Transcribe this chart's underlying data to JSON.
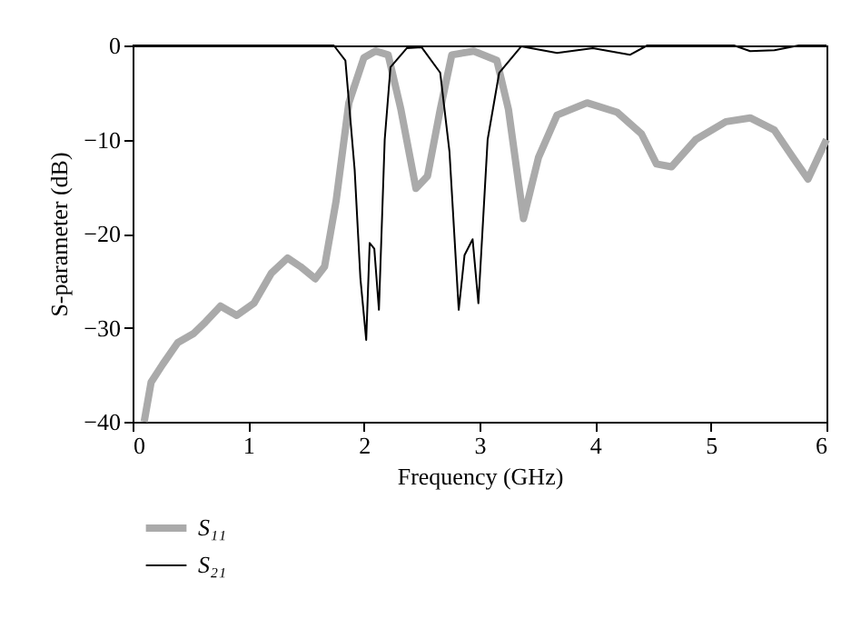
{
  "chart_data": {
    "type": "line",
    "xlabel": "Frequency (GHz)",
    "ylabel": "S-parameter (dB)",
    "xlim": [
      0,
      6
    ],
    "ylim": [
      -40,
      0
    ],
    "xticks": [
      0,
      1,
      2,
      3,
      4,
      5,
      6
    ],
    "yticks": [
      -40,
      -30,
      -20,
      -10,
      0
    ],
    "grid": false,
    "legend": "bottom left",
    "marker": "none",
    "line_style": "solid",
    "series": [
      {
        "name": "S₁₁",
        "color": "#aaaaaa",
        "x": [
          0.1,
          0.16,
          0.26,
          0.39,
          0.53,
          0.63,
          0.76,
          0.9,
          1.05,
          1.2,
          1.34,
          1.45,
          1.58,
          1.66,
          1.76,
          1.87,
          2.0,
          2.1,
          2.21,
          2.32,
          2.45,
          2.55,
          2.66,
          2.76,
          2.95,
          3.15,
          3.25,
          3.38,
          3.51,
          3.67,
          3.93,
          4.19,
          4.4,
          4.53,
          4.66,
          4.87,
          5.13,
          5.34,
          5.55,
          5.71,
          5.84,
          6.0
        ],
        "values": [
          -40,
          -35.8,
          -33.9,
          -31.6,
          -30.6,
          -29.4,
          -27.7,
          -28.7,
          -27.4,
          -24.2,
          -22.6,
          -23.5,
          -24.8,
          -23.5,
          -16.5,
          -6.1,
          -1.3,
          -0.6,
          -1,
          -6.8,
          -15.2,
          -13.9,
          -6.8,
          -1,
          -0.6,
          -1.6,
          -6.8,
          -18.4,
          -11.9,
          -7.4,
          -6.1,
          -7.1,
          -9.4,
          -12.6,
          -12.9,
          -10,
          -8.1,
          -7.7,
          -9,
          -11.9,
          -14.2,
          -10
        ]
      },
      {
        "name": "S₂₁",
        "color": "#000000",
        "x": [
          0,
          1.74,
          1.84,
          1.92,
          1.97,
          2.02,
          2.05,
          2.09,
          2.13,
          2.18,
          2.23,
          2.37,
          2.5,
          2.66,
          2.74,
          2.82,
          2.87,
          2.94,
          2.99,
          3.07,
          3.17,
          3.36,
          3.67,
          3.98,
          4.3,
          4.45,
          5.2,
          5.34,
          5.55,
          5.76,
          6.0
        ],
        "values": [
          0,
          0,
          -1.6,
          -13.2,
          -24.8,
          -31.3,
          -21,
          -21.6,
          -28.1,
          -10,
          -2.3,
          -0.3,
          -0.2,
          -2.9,
          -11.3,
          -28.1,
          -22.3,
          -20.6,
          -27.4,
          -10,
          -2.9,
          -0.1,
          -0.8,
          -0.3,
          -1,
          0,
          0,
          -0.6,
          -0.5,
          0,
          0
        ]
      }
    ]
  }
}
